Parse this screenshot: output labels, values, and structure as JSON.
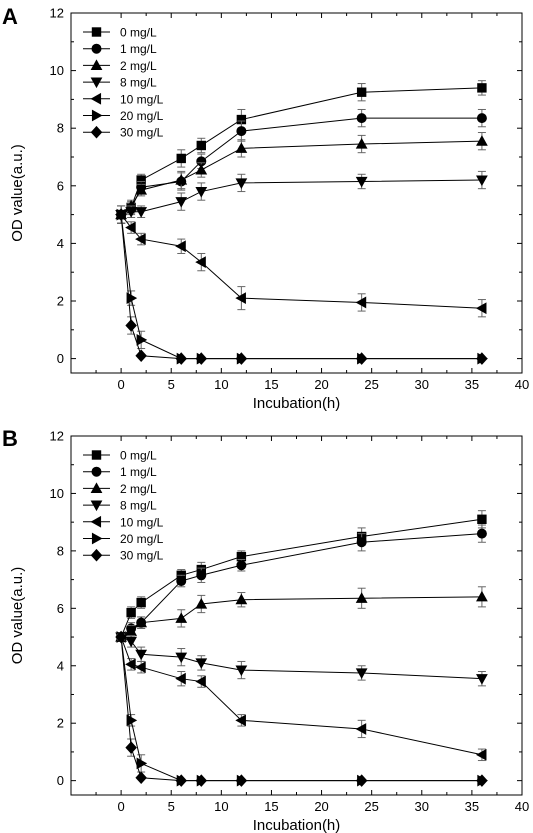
{
  "chart_data": [
    {
      "panel": "A",
      "type": "line",
      "xlabel": "Incubation(h)",
      "ylabel": "OD value(a.u.)",
      "xlim": [
        -5,
        40
      ],
      "ylim": [
        -0.5,
        12
      ],
      "xticks": [
        0,
        5,
        10,
        15,
        20,
        25,
        30,
        35,
        40
      ],
      "yticks": [
        0,
        2,
        4,
        6,
        8,
        10,
        12
      ],
      "legend_position": "top-left",
      "x": [
        0,
        1,
        2,
        6,
        8,
        12,
        24,
        36
      ],
      "series": [
        {
          "name": "0 mg/L",
          "marker": "square",
          "values": [
            5.0,
            5.25,
            6.2,
            6.95,
            7.4,
            8.3,
            9.25,
            9.4
          ],
          "errors": [
            0.3,
            0.2,
            0.2,
            0.3,
            0.25,
            0.35,
            0.3,
            0.25
          ]
        },
        {
          "name": "1 mg/L",
          "marker": "circle",
          "values": [
            5.0,
            5.2,
            5.95,
            6.15,
            6.85,
            7.9,
            8.35,
            8.35
          ],
          "errors": [
            0.3,
            0.2,
            0.2,
            0.3,
            0.25,
            0.35,
            0.3,
            0.3
          ]
        },
        {
          "name": "2 mg/L",
          "marker": "triangle-up",
          "values": [
            5.0,
            5.3,
            5.85,
            6.2,
            6.55,
            7.3,
            7.45,
            7.55
          ],
          "errors": [
            0.3,
            0.2,
            0.2,
            0.3,
            0.25,
            0.3,
            0.3,
            0.3
          ]
        },
        {
          "name": "8 mg/L",
          "marker": "triangle-down",
          "values": [
            5.0,
            5.1,
            5.1,
            5.45,
            5.8,
            6.1,
            6.15,
            6.2
          ],
          "errors": [
            0.3,
            0.2,
            0.2,
            0.3,
            0.3,
            0.3,
            0.25,
            0.3
          ]
        },
        {
          "name": "10 mg/L",
          "marker": "triangle-left",
          "values": [
            5.0,
            4.55,
            4.15,
            3.9,
            3.35,
            2.1,
            1.95,
            1.75
          ],
          "errors": [
            0.3,
            0.2,
            0.2,
            0.25,
            0.3,
            0.4,
            0.3,
            0.3
          ]
        },
        {
          "name": "20 mg/L",
          "marker": "triangle-right",
          "values": [
            5.0,
            2.1,
            0.65,
            0.0,
            0.0,
            0.0,
            0.0,
            0.0
          ],
          "errors": [
            0.3,
            0.25,
            0.3,
            0.05,
            0.05,
            0.05,
            0.05,
            0.05
          ]
        },
        {
          "name": "30 mg/L",
          "marker": "diamond",
          "values": [
            5.0,
            1.15,
            0.1,
            0.0,
            0.0,
            0.0,
            0.0,
            0.0
          ],
          "errors": [
            0.3,
            0.3,
            0.05,
            0.05,
            0.05,
            0.05,
            0.05,
            0.05
          ]
        }
      ]
    },
    {
      "panel": "B",
      "type": "line",
      "xlabel": "Incubation(h)",
      "ylabel": "OD value(a.u.)",
      "xlim": [
        -5,
        40
      ],
      "ylim": [
        -0.5,
        12
      ],
      "xticks": [
        0,
        5,
        10,
        15,
        20,
        25,
        30,
        35,
        40
      ],
      "yticks": [
        0,
        2,
        4,
        6,
        8,
        10,
        12
      ],
      "legend_position": "top-left",
      "x": [
        0,
        1,
        2,
        6,
        8,
        12,
        24,
        36
      ],
      "series": [
        {
          "name": "0 mg/L",
          "marker": "square",
          "values": [
            5.0,
            5.85,
            6.2,
            7.15,
            7.35,
            7.8,
            8.5,
            9.1
          ],
          "errors": [
            0.1,
            0.2,
            0.2,
            0.2,
            0.25,
            0.2,
            0.3,
            0.3
          ]
        },
        {
          "name": "1 mg/L",
          "marker": "circle",
          "values": [
            5.0,
            5.3,
            5.5,
            6.95,
            7.15,
            7.5,
            8.3,
            8.6
          ],
          "errors": [
            0.1,
            0.2,
            0.2,
            0.2,
            0.25,
            0.2,
            0.3,
            0.3
          ]
        },
        {
          "name": "2 mg/L",
          "marker": "triangle-up",
          "values": [
            5.0,
            5.2,
            5.5,
            5.65,
            6.15,
            6.3,
            6.35,
            6.4
          ],
          "errors": [
            0.1,
            0.2,
            0.2,
            0.3,
            0.3,
            0.25,
            0.35,
            0.35
          ]
        },
        {
          "name": "8 mg/L",
          "marker": "triangle-down",
          "values": [
            5.0,
            4.85,
            4.4,
            4.3,
            4.1,
            3.85,
            3.75,
            3.55
          ],
          "errors": [
            0.1,
            0.2,
            0.25,
            0.3,
            0.25,
            0.3,
            0.25,
            0.25
          ]
        },
        {
          "name": "10 mg/L",
          "marker": "triangle-left",
          "values": [
            5.0,
            4.05,
            3.95,
            3.55,
            3.45,
            2.1,
            1.8,
            0.9
          ],
          "errors": [
            0.1,
            0.2,
            0.2,
            0.25,
            0.2,
            0.2,
            0.3,
            0.2
          ]
        },
        {
          "name": "20 mg/L",
          "marker": "triangle-right",
          "values": [
            5.0,
            2.1,
            0.6,
            0.0,
            0.0,
            0.0,
            0.0,
            0.0
          ],
          "errors": [
            0.1,
            0.2,
            0.3,
            0.05,
            0.05,
            0.05,
            0.05,
            0.05
          ]
        },
        {
          "name": "30 mg/L",
          "marker": "diamond",
          "values": [
            5.0,
            1.15,
            0.1,
            0.0,
            0.0,
            0.0,
            0.0,
            0.0
          ],
          "errors": [
            0.1,
            0.3,
            0.05,
            0.05,
            0.05,
            0.05,
            0.05,
            0.05
          ]
        }
      ]
    }
  ]
}
